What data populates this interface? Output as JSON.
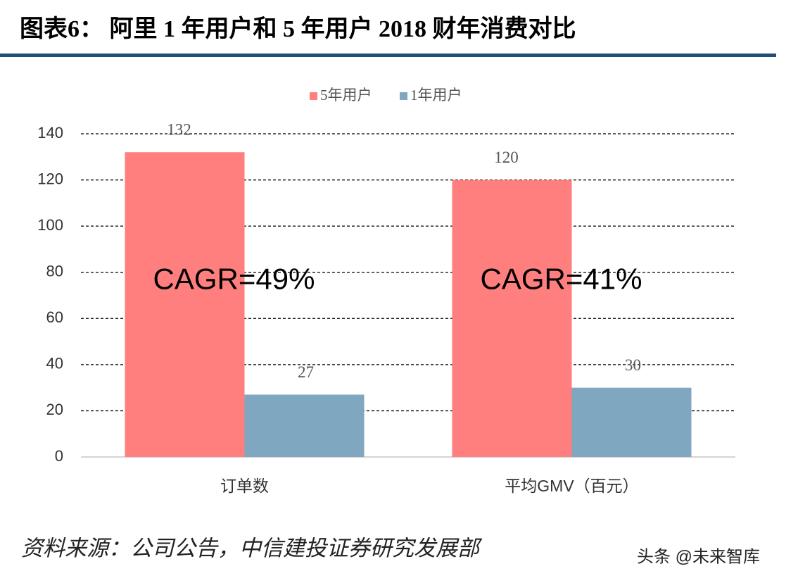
{
  "chart_data": {
    "type": "bar",
    "title": "图表6：  阿里 1 年用户和 5 年用户 2018 财年消费对比",
    "categories": [
      "订单数",
      "平均GMV（百元）"
    ],
    "series": [
      {
        "name": "5年用户",
        "color": "#ff7f7f",
        "values": [
          132,
          120
        ]
      },
      {
        "name": "1年用户",
        "color": "#7fa7bf",
        "values": [
          27,
          30
        ]
      }
    ],
    "annotations": [
      "CAGR=49%",
      "CAGR=41%"
    ],
    "ylim": [
      0,
      140
    ],
    "yticks": [
      0,
      20,
      40,
      60,
      80,
      100,
      120,
      140
    ],
    "grid": true,
    "legend": "top",
    "source": "资料来源：公司公告，中信建投证券研究发展部",
    "watermark": "头条 @未来智库"
  }
}
